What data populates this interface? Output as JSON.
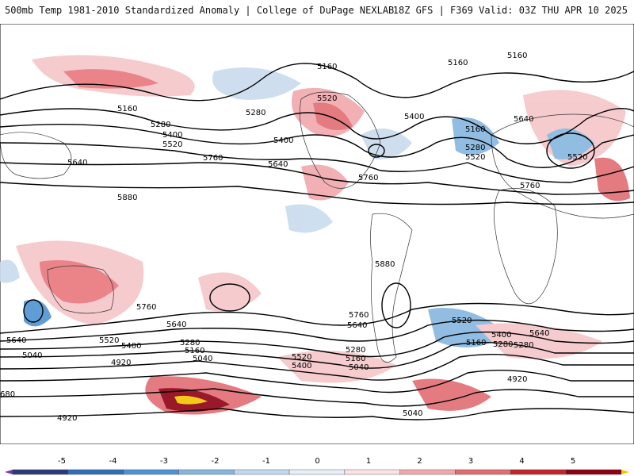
{
  "header": {
    "left_text": "500mb Temp 1981-2010 Standardized Anomaly | College of DuPage NEXLAB",
    "right_text": "18Z GFS | F369 Valid: 03Z THU APR 10 2025"
  },
  "colors": {
    "strong_pos": "#b30010",
    "pos": "#e8777c",
    "weak_pos": "#f5c6c9",
    "weak_neg": "#c9dbee",
    "neg": "#7fb0dd",
    "strong_neg": "#2f6fb8",
    "max_pos": "#f5c400",
    "min_neg": "#6a3fa0"
  },
  "contour_labels": [
    "5160",
    "5160",
    "5160",
    "5160",
    "5280",
    "5400",
    "5520",
    "5640",
    "5760",
    "5880",
    "5400",
    "5280",
    "5520",
    "5400",
    "5640",
    "5760",
    "5880",
    "5160",
    "5280",
    "5520",
    "5640",
    "5520",
    "5760",
    "5760",
    "5640",
    "5520",
    "5400",
    "5280",
    "5160",
    "5040",
    "4920",
    "5640",
    "5760",
    "5520",
    "5400",
    "5280",
    "5160",
    "5040",
    "5640",
    "5520",
    "5400",
    "5280",
    "5160",
    "5040",
    "4920",
    "5040",
    "4920",
    "4920",
    "680",
    "5640",
    "5400",
    "5280",
    "5160"
  ],
  "colorbar": {
    "ticks": [
      "-5",
      "-4",
      "-3",
      "-2",
      "-1",
      "0",
      "1",
      "2",
      "3",
      "4",
      "5"
    ],
    "colors": [
      "#2b3a78",
      "#2f6fb8",
      "#4e93d2",
      "#86b6df",
      "#c2d8ee",
      "#e8eff8",
      "#fbe3e5",
      "#f1a8ad",
      "#e06d74",
      "#c7232d",
      "#8e0013"
    ]
  }
}
